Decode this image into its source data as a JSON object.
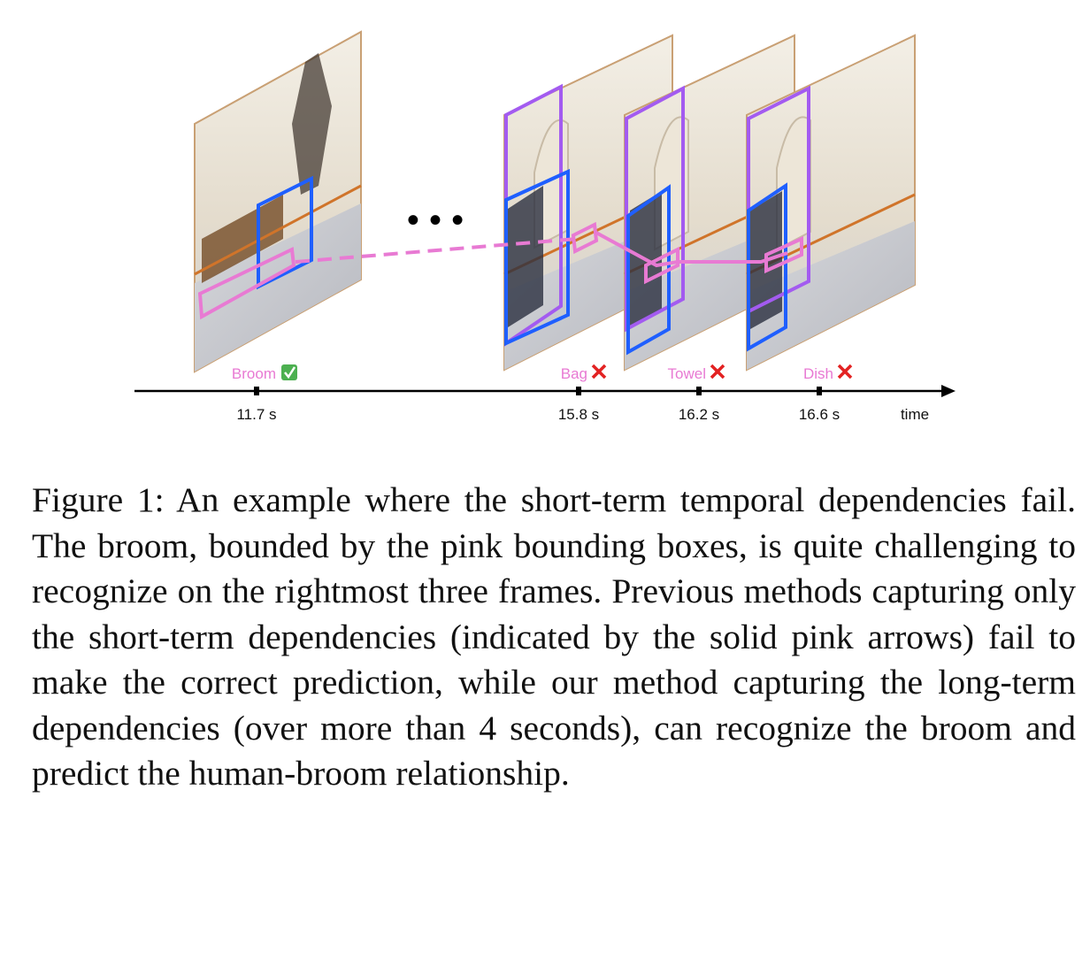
{
  "figure": {
    "frames": [
      {
        "label": "Broom",
        "mark": "check",
        "time": "11.7 s"
      },
      {
        "label": "Bag",
        "mark": "cross",
        "time": "15.8 s"
      },
      {
        "label": "Towel",
        "mark": "cross",
        "time": "16.2 s"
      },
      {
        "label": "Dish",
        "mark": "cross",
        "time": "16.6 s"
      }
    ],
    "ellipsis": "• • •",
    "axis_label": "time",
    "colors": {
      "broom_box": "#e87ad3",
      "person_box": "#1f5fff",
      "object_box": "#a35bf0",
      "floor_line": "#d0742a",
      "check": "#4cb050",
      "cross": "#e32222"
    }
  },
  "caption": {
    "text": "Figure 1:  An example where the short-term temporal dependencies fail. The broom, bounded by the pink bounding boxes, is quite challenging to recognize on the rightmost three frames.  Previous methods capturing only the short-term dependencies (indicated by the solid pink arrows) fail to make the correct prediction, while our method capturing the long-term dependencies (over more than 4 seconds), can recognize the broom and predict the human-broom relationship."
  }
}
